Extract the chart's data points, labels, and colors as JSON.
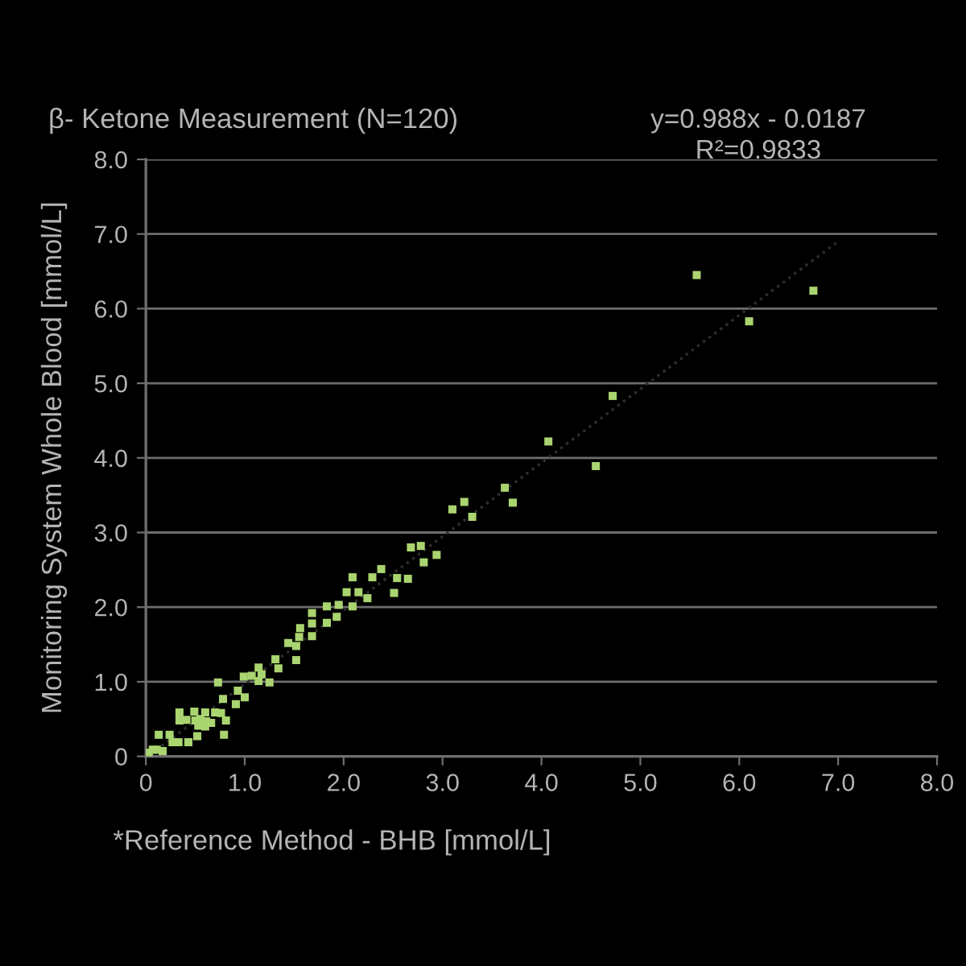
{
  "chart_data": {
    "type": "scatter",
    "title": "β- Ketone Measurement (N=120)",
    "xlabel": "*Reference Method - BHB [mmol/L]",
    "ylabel": "Monitoring System Whole Blood [mmol/L]",
    "annotations": [
      "y=0.988x - 0.0187",
      "R²=0.9833"
    ],
    "series": [
      {
        "color": "#a9d46f",
        "marker": "square",
        "x": [
          0.03,
          0.07,
          0.11,
          0.17,
          0.13,
          0.24,
          0.27,
          0.33,
          0.43,
          0.34,
          0.34,
          0.41,
          0.49,
          0.5,
          0.53,
          0.55,
          0.6,
          0.6,
          0.52,
          0.61,
          0.66,
          0.7,
          0.76,
          0.81,
          0.79,
          0.73,
          0.78,
          0.91,
          0.93,
          1.0,
          0.99,
          1.07,
          1.14,
          1.14,
          1.17,
          1.25,
          1.31,
          1.34,
          1.44,
          1.52,
          1.52,
          1.55,
          1.56,
          1.68,
          1.68,
          1.68,
          1.83,
          1.83,
          1.93,
          1.95,
          2.03,
          2.09,
          2.09,
          2.15,
          2.24,
          2.29,
          2.38,
          2.51,
          2.54,
          2.65,
          2.68,
          2.78,
          2.81,
          2.94,
          3.1,
          3.22,
          3.3,
          3.63,
          3.71,
          4.07,
          4.55,
          4.72,
          5.57,
          6.1,
          6.75
        ],
        "values": [
          0.05,
          0.09,
          0.09,
          0.07,
          0.29,
          0.29,
          0.19,
          0.19,
          0.19,
          0.59,
          0.48,
          0.49,
          0.6,
          0.48,
          0.41,
          0.5,
          0.59,
          0.4,
          0.27,
          0.47,
          0.45,
          0.59,
          0.58,
          0.48,
          0.29,
          0.99,
          0.77,
          0.7,
          0.88,
          0.79,
          1.07,
          1.08,
          1.19,
          1.01,
          1.1,
          0.99,
          1.3,
          1.18,
          1.52,
          1.29,
          1.48,
          1.6,
          1.72,
          1.92,
          1.78,
          1.61,
          2.01,
          1.79,
          1.87,
          2.03,
          2.2,
          2.4,
          2.01,
          2.2,
          2.12,
          2.4,
          2.51,
          2.19,
          2.39,
          2.38,
          2.8,
          2.82,
          2.6,
          2.7,
          3.31,
          3.41,
          3.21,
          3.6,
          3.4,
          4.22,
          3.89,
          4.83,
          6.45,
          5.83,
          6.24
        ]
      },
      {
        "type": "line",
        "color": "#2e2e2e",
        "line_style": "dotted",
        "x": [
          0.1,
          7.0
        ],
        "values": [
          0.08,
          6.9
        ]
      }
    ],
    "xlim": [
      0,
      8
    ],
    "ylim": [
      0,
      8
    ],
    "xticks": [
      0,
      {
        "value": 1,
        "label": "1.0"
      },
      {
        "value": 2,
        "label": "2.0"
      },
      {
        "value": 3,
        "label": "3.0"
      },
      {
        "value": 4,
        "label": "4.0"
      },
      {
        "value": 5,
        "label": "5.0"
      },
      {
        "value": 6,
        "label": "6.0"
      },
      {
        "value": 7,
        "label": "7.0"
      },
      {
        "value": 8,
        "label": "8.0"
      }
    ],
    "yticks": [
      0,
      {
        "value": 1,
        "label": "1.0"
      },
      {
        "value": 2,
        "label": "2.0"
      },
      {
        "value": 3,
        "label": "3.0"
      },
      {
        "value": 4,
        "label": "4.0"
      },
      {
        "value": 5,
        "label": "5.0"
      },
      {
        "value": 6,
        "label": "6.0"
      },
      {
        "value": 7,
        "label": "7.0"
      },
      {
        "value": 8,
        "label": "8.0"
      }
    ],
    "grid": "y"
  }
}
